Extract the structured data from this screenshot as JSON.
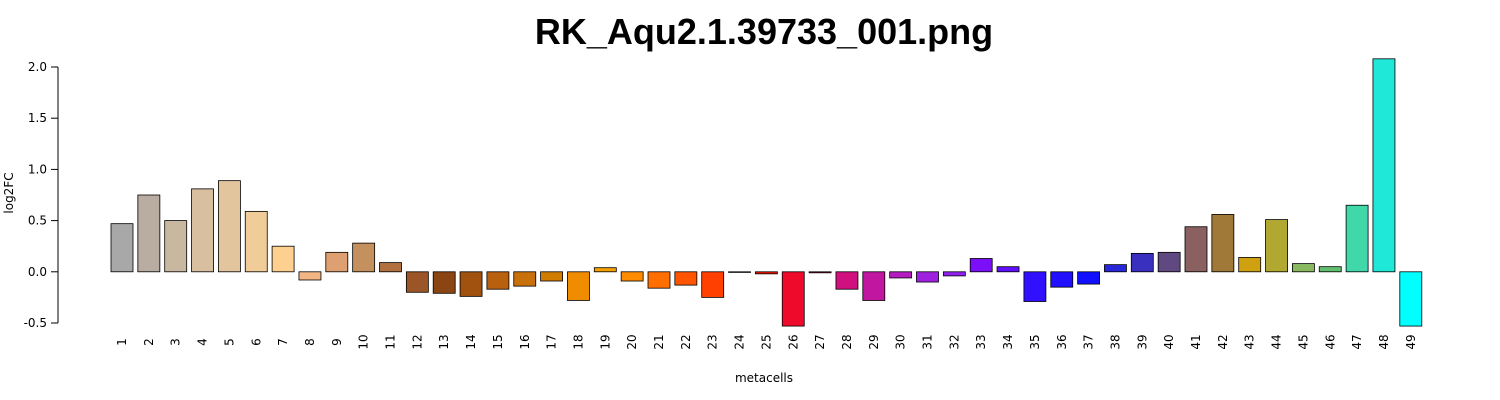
{
  "chart_data": {
    "type": "bar",
    "title": "RK_Aqu2.1.39733_001.png",
    "xlabel": "metacells",
    "ylabel": "log2FC",
    "ylim": [
      -0.5,
      2.0
    ],
    "yticks": [
      -0.5,
      0.0,
      0.5,
      1.0,
      1.5,
      2.0
    ],
    "ytick_labels": [
      "-0.5",
      "0.0",
      "0.5",
      "1.0",
      "1.5",
      "2.0"
    ],
    "grid": false,
    "legend": "none",
    "categories": [
      "1",
      "2",
      "3",
      "4",
      "5",
      "6",
      "7",
      "8",
      "9",
      "10",
      "11",
      "12",
      "13",
      "14",
      "15",
      "16",
      "17",
      "18",
      "19",
      "20",
      "21",
      "22",
      "23",
      "24",
      "25",
      "26",
      "27",
      "28",
      "29",
      "30",
      "31",
      "32",
      "33",
      "34",
      "35",
      "36",
      "37",
      "38",
      "39",
      "40",
      "41",
      "42",
      "43",
      "44",
      "45",
      "46",
      "47",
      "48",
      "49"
    ],
    "values": [
      0.47,
      0.75,
      0.5,
      0.81,
      0.89,
      0.59,
      0.25,
      -0.08,
      0.19,
      0.28,
      0.09,
      -0.2,
      -0.21,
      -0.24,
      -0.17,
      -0.14,
      -0.09,
      -0.28,
      0.04,
      -0.09,
      -0.16,
      -0.13,
      -0.25,
      0.0,
      -0.02,
      -0.53,
      -0.01,
      -0.17,
      -0.28,
      -0.06,
      -0.1,
      -0.04,
      0.13,
      0.05,
      -0.29,
      -0.15,
      -0.12,
      0.07,
      0.18,
      0.19,
      0.44,
      0.56,
      0.14,
      0.51,
      0.08,
      0.05,
      0.65,
      2.08,
      -0.53
    ],
    "colors": [
      "#a8a8a8",
      "#b8ada0",
      "#c8b8a0",
      "#d8bfa0",
      "#e3c59d",
      "#f0cc98",
      "#fdd090",
      "#f2b685",
      "#dea070",
      "#c4905d",
      "#b07040",
      "#9b5526",
      "#8b4513",
      "#a0520e",
      "#b8600e",
      "#c8700a",
      "#d07c00",
      "#ef8c00",
      "#f5a000",
      "#ff8c00",
      "#ff6f00",
      "#ff5500",
      "#ff4000",
      "#ff2a00",
      "#ff1500",
      "#ee0a2a",
      "#d80a50",
      "#d0107e",
      "#c016a0",
      "#b51cc0",
      "#a020e0",
      "#9020f0",
      "#7b10f8",
      "#6010ff",
      "#3010ff",
      "#2010ff",
      "#1010ff",
      "#2828d8",
      "#3a30c0",
      "#604880",
      "#8a6060",
      "#a07838",
      "#cfa010",
      "#b0a830",
      "#88b860",
      "#60c070",
      "#40d8a8",
      "#20e8d8",
      "#00ffff"
    ]
  }
}
